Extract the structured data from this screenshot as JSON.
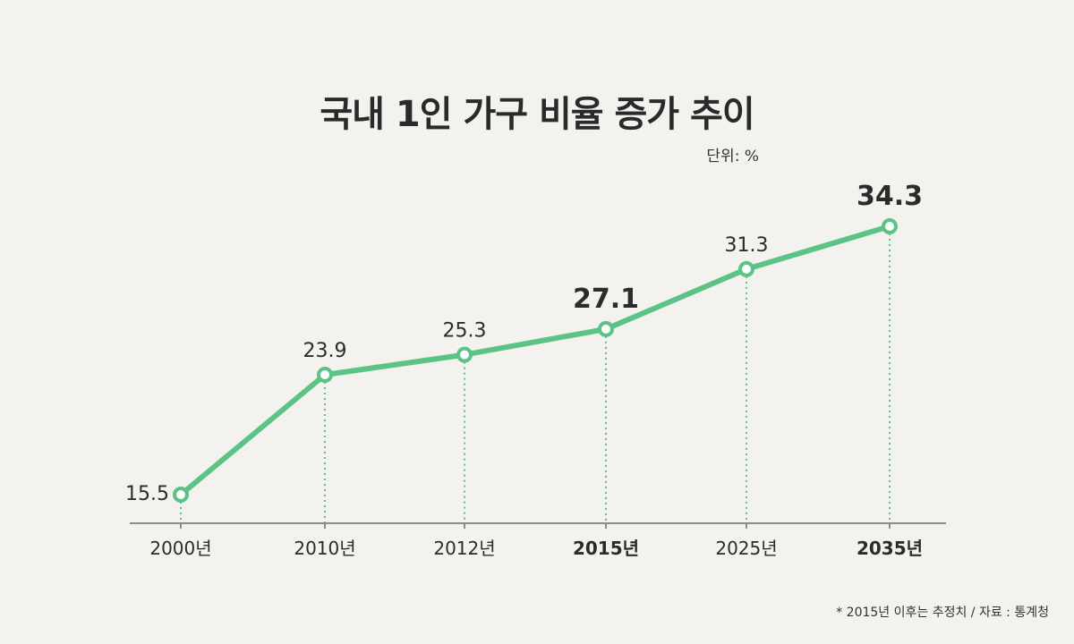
{
  "title": "국내 1인 가구 비율 증가 추이",
  "unit": "단위: %",
  "footnote": "* 2015년 이후는 추정치 /  자료 : 통계청",
  "colors": {
    "line": "#5cc387",
    "guide": "#5cc387",
    "axis": "#8c8c8c",
    "background": "#f3f2ee",
    "text": "#2b2b2b"
  },
  "chart_data": {
    "type": "line",
    "categories": [
      "2000년",
      "2010년",
      "2012년",
      "2015년",
      "2025년",
      "2035년"
    ],
    "values": [
      15.5,
      23.9,
      25.3,
      27.1,
      31.3,
      34.3
    ],
    "data_labels": [
      "15.5",
      "23.9",
      "25.3",
      "27.1",
      "31.3",
      "34.3"
    ],
    "emphasized": [
      "2015년",
      "2035년"
    ],
    "title": "국내 1인 가구 비율 증가 추이",
    "xlabel": "",
    "ylabel": "",
    "unit": "%",
    "grid": false,
    "legend": "none"
  }
}
